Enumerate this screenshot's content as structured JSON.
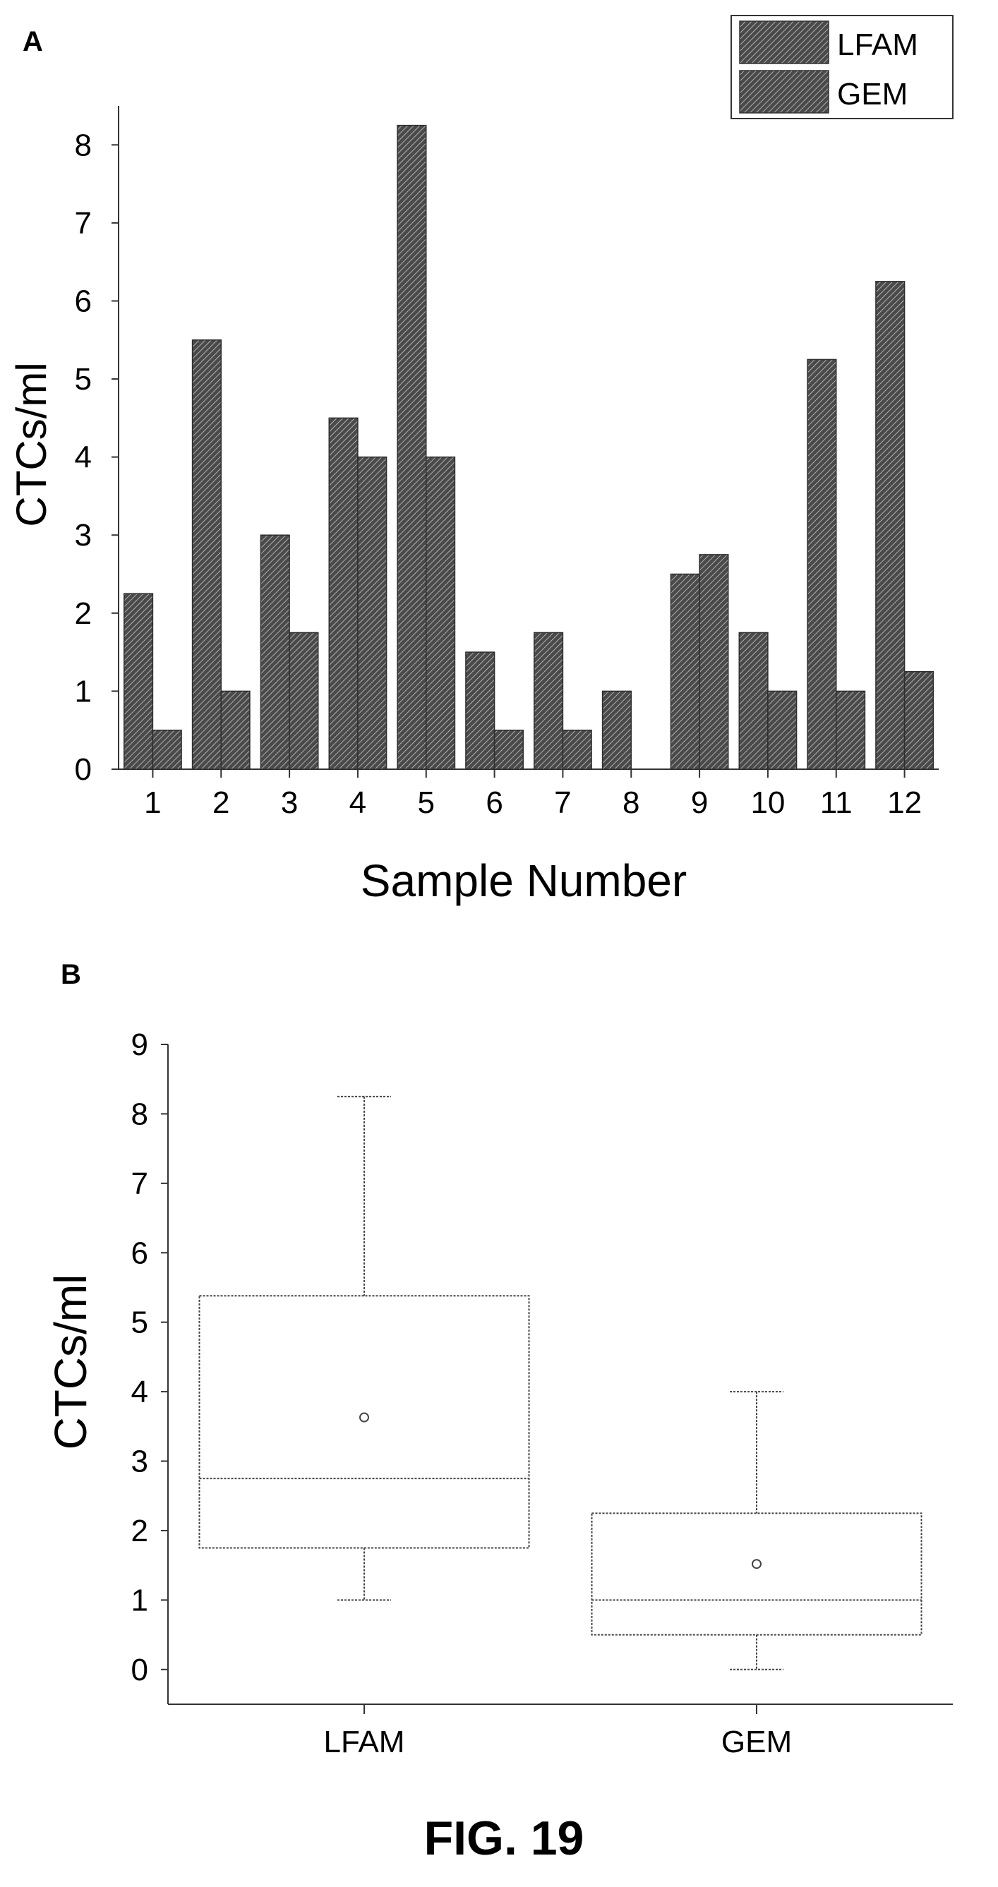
{
  "figure": {
    "caption": "FIG. 19"
  },
  "chart_data": [
    {
      "panel": "A",
      "type": "bar",
      "xlabel": "Sample Number",
      "ylabel": "CTCs/ml",
      "categories": [
        "1",
        "2",
        "3",
        "4",
        "5",
        "6",
        "7",
        "8",
        "9",
        "10",
        "11",
        "12"
      ],
      "series": [
        {
          "name": "LFAM",
          "values": [
            2.25,
            5.5,
            3.0,
            4.5,
            8.25,
            1.5,
            1.75,
            1.0,
            2.5,
            1.75,
            5.25,
            6.25
          ]
        },
        {
          "name": "GEM",
          "values": [
            0.5,
            1.0,
            1.75,
            4.0,
            4.0,
            0.5,
            0.5,
            0.0,
            2.75,
            1.0,
            1.0,
            1.25
          ]
        }
      ],
      "ylim": [
        0,
        8.5
      ],
      "yticks": [
        0,
        1,
        2,
        3,
        4,
        5,
        6,
        7,
        8
      ],
      "legend": {
        "placement": "top-right"
      },
      "grid": false,
      "colors": {
        "bar": "#555555",
        "hatch": "#bbbbbb"
      }
    },
    {
      "panel": "B",
      "type": "box",
      "ylabel": "CTCs/ml",
      "categories": [
        "LFAM",
        "GEM"
      ],
      "boxes": [
        {
          "name": "LFAM",
          "whisker_low": 1.0,
          "q1": 1.75,
          "median": 2.75,
          "q3": 5.38,
          "whisker_high": 8.25,
          "mean": 3.63
        },
        {
          "name": "GEM",
          "whisker_low": 0.0,
          "q1": 0.5,
          "median": 1.0,
          "q3": 2.25,
          "whisker_high": 4.0,
          "mean": 1.52
        }
      ],
      "ylim": [
        -0.5,
        9
      ],
      "yticks": [
        0,
        1,
        2,
        3,
        4,
        5,
        6,
        7,
        8,
        9
      ],
      "grid": false
    }
  ]
}
